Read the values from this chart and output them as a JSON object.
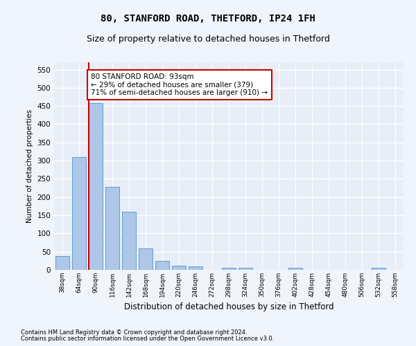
{
  "title1": "80, STANFORD ROAD, THETFORD, IP24 1FH",
  "title2": "Size of property relative to detached houses in Thetford",
  "xlabel": "Distribution of detached houses by size in Thetford",
  "ylabel": "Number of detached properties",
  "footnote1": "Contains HM Land Registry data © Crown copyright and database right 2024.",
  "footnote2": "Contains public sector information licensed under the Open Government Licence v3.0.",
  "bins": [
    "38sqm",
    "64sqm",
    "90sqm",
    "116sqm",
    "142sqm",
    "168sqm",
    "194sqm",
    "220sqm",
    "246sqm",
    "272sqm",
    "298sqm",
    "324sqm",
    "350sqm",
    "376sqm",
    "402sqm",
    "428sqm",
    "454sqm",
    "480sqm",
    "506sqm",
    "532sqm",
    "558sqm"
  ],
  "values": [
    38,
    310,
    457,
    228,
    160,
    58,
    25,
    11,
    9,
    0,
    5,
    6,
    0,
    0,
    5,
    0,
    0,
    0,
    0,
    5,
    0
  ],
  "bar_color": "#aec6e8",
  "bar_edge_color": "#5a9fd4",
  "highlight_bar_index": 2,
  "highlight_line_color": "#cc0000",
  "annotation_text": "80 STANFORD ROAD: 93sqm\n← 29% of detached houses are smaller (379)\n71% of semi-detached houses are larger (910) →",
  "annotation_box_color": "#ffffff",
  "annotation_border_color": "#cc0000",
  "ylim": [
    0,
    570
  ],
  "yticks": [
    0,
    50,
    100,
    150,
    200,
    250,
    300,
    350,
    400,
    450,
    500,
    550
  ],
  "fig_bg_color": "#f0f4fc",
  "plot_bg_color": "#e8eef8",
  "grid_color": "#ffffff",
  "title_fontsize": 10,
  "subtitle_fontsize": 9
}
